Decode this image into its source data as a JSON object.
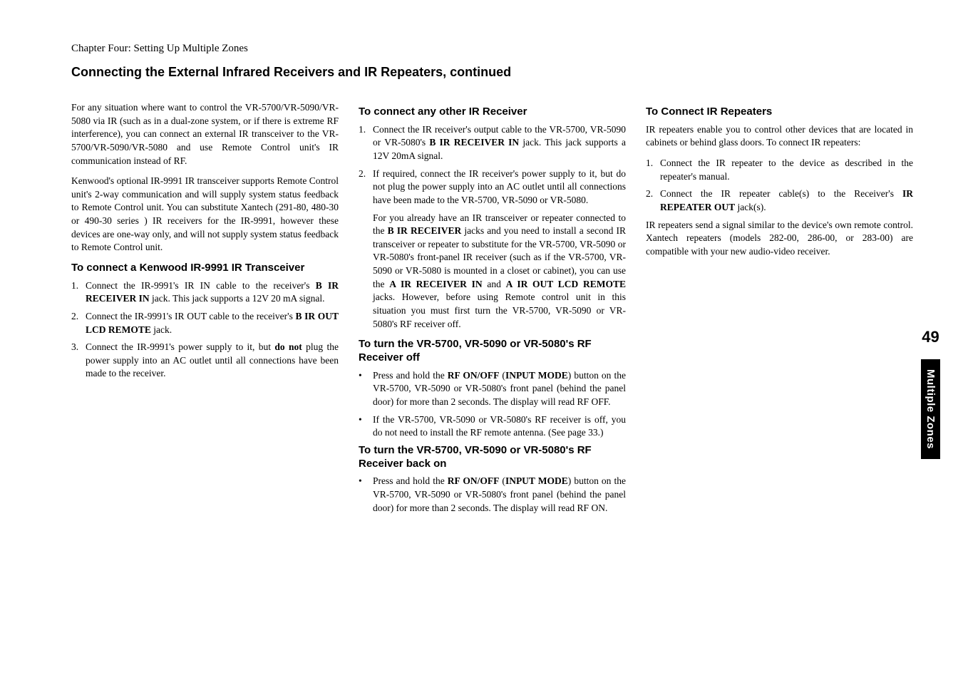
{
  "chapter_line": "Chapter Four: Setting Up Multiple Zones",
  "section_title": "Connecting the External Infrared Receivers and IR Repeaters, continued",
  "page_number": "49",
  "side_tab": "Multiple Zones",
  "col1_p1": "For any situation where want to control the VR-5700/VR-5090/VR-5080 via IR (such as in a dual-zone system, or if there is extreme RF interference), you can connect an external IR transceiver to the VR-5700/VR-5090/VR-5080 and use Remote Control unit's IR communication instead of RF.",
  "col1_p2": "Kenwood's optional IR-9991 IR transceiver supports Remote Control unit's 2-way communication and will supply system status feedback to Remote Control unit. You can substitute Xantech (291-80, 480-30 or 490-30 series ) IR receivers for the IR-9991, however these devices are one-way only, and will not supply system status feedback to Remote Control unit.",
  "col1_h1": "To connect a Kenwood IR-9991 IR Transceiver",
  "col1_li1_a": "Connect the IR-9991's IR IN cable to the receiver's ",
  "col1_li1_b": "B IR RECEIVER IN",
  "col1_li1_c": " jack. This jack supports a 12V 20 mA signal.",
  "col1_li2_a": "Connect the IR-9991's IR OUT cable to the receiver's ",
  "col1_li2_b": "B IR OUT LCD REMOTE",
  "col1_li2_c": " jack.",
  "col1_li3_a": "Connect the IR-9991's power supply to it, but ",
  "col1_li3_b": "do not",
  "col1_li3_c": " plug the power supply into an AC outlet until all connections have been made to the receiver.",
  "col2_h1": "To connect any other IR Receiver",
  "col2_li1_a": "Connect the IR receiver's output cable to the VR-5700, VR-5090 or VR-5080's ",
  "col2_li1_b": "B IR RECEIVER IN",
  "col2_li1_c": " jack. This jack supports a 12V 20mA signal.",
  "col2_li2": "If required, connect the IR receiver's power supply to it, but do not plug the power supply into an AC outlet until all connections have been made to the VR-5700, VR-5090 or VR-5080.",
  "col2_note_a": "For you already have an IR transceiver or repeater connected to the ",
  "col2_note_b": "B IR RECEIVER",
  "col2_note_c": " jacks and you need to install a second IR transceiver or repeater to substitute for the VR-5700, VR-5090 or VR-5080's front-panel IR receiver (such as if the VR-5700, VR-5090 or VR-5080 is mounted in a closet or cabinet), you can use the ",
  "col2_note_d": "A IR RECEIVER IN",
  "col2_note_e": " and ",
  "col2_note_f": "A IR OUT LCD REMOTE",
  "col2_note_g": " jacks. However, before using Remote control unit in this situation you must first turn the VR-5700, VR-5090 or VR-5080's RF receiver off.",
  "col2_h2": "To turn the VR-5700, VR-5090 or VR-5080's RF Receiver off",
  "col2_b1_a": "Press and hold the ",
  "col2_b1_b": "RF ON/OFF",
  "col2_b1_c": " (",
  "col2_b1_d": "INPUT MODE",
  "col2_b1_e": ") button on the VR-5700, VR-5090 or VR-5080's front panel (behind the panel door) for more than 2 seconds. The display will read RF OFF.",
  "col2_b2": "If the VR-5700, VR-5090 or VR-5080's RF receiver is off, you do not need to install the RF remote antenna. (See page 33.)",
  "col2_h3": "To turn the VR-5700, VR-5090 or VR-5080's RF Receiver back on",
  "col2_b3_a": "Press and hold the ",
  "col2_b3_b": "RF ON/OFF",
  "col2_b3_c": " (",
  "col2_b3_d": "INPUT MODE",
  "col2_b3_e": ") button on the VR-5700, VR-5090 or VR-5080's front panel (behind the panel door) for more than 2 seconds. The display will read RF ON.",
  "col3_h1": "To Connect IR Repeaters",
  "col3_p1": "IR repeaters enable you to control other devices that are located in cabinets or behind glass doors. To connect IR repeaters:",
  "col3_li1": "Connect the IR repeater to the device as described in the repeater's manual.",
  "col3_li2_a": "Connect the IR repeater cable(s) to the Receiver's ",
  "col3_li2_b": "IR REPEATER OUT",
  "col3_li2_c": " jack(s).",
  "col3_p2": "IR repeaters send a signal similar to the device's own remote control. Xantech repeaters (models 282-00, 286-00, or 283-00) are compatible with your new audio-video receiver."
}
